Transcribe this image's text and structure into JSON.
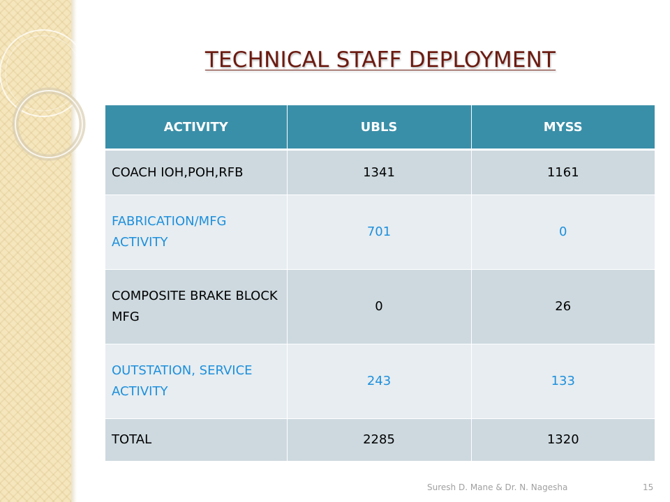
{
  "slide": {
    "title": "TECHNICAL STAFF DEPLOYMENT"
  },
  "table": {
    "headers": [
      "ACTIVITY",
      "UBLS",
      "MYSS"
    ],
    "rows": [
      {
        "activity": "COACH IOH,POH,RFB",
        "ubls": "1341",
        "myss": "1161"
      },
      {
        "activity": "FABRICATION/MFG ACTIVITY",
        "ubls": "701",
        "myss": "0"
      },
      {
        "activity": "COMPOSITE BRAKE BLOCK MFG",
        "ubls": "0",
        "myss": "26"
      },
      {
        "activity": "OUTSTATION, SERVICE ACTIVITY",
        "ubls": "243",
        "myss": "133"
      },
      {
        "activity": "TOTAL",
        "ubls": "2285",
        "myss": "1320"
      }
    ]
  },
  "footer": {
    "author": "Suresh D. Mane & Dr. N. Nagesha",
    "page_number": "15"
  },
  "colors": {
    "title": "#6b1a10",
    "header_bg": "#3a8fa8",
    "row_dark": "#cdd9df",
    "row_light": "#e7edf0",
    "accent_text": "#1e8fdc"
  }
}
